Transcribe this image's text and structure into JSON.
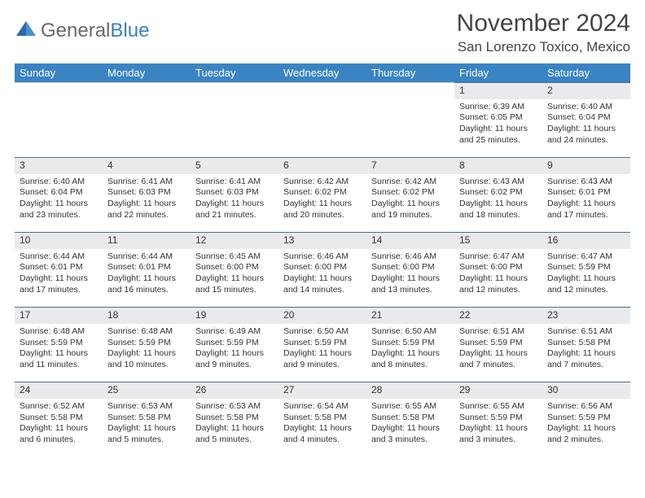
{
  "logo": {
    "word1": "General",
    "word2": "Blue"
  },
  "title": "November 2024",
  "location": "San Lorenzo Toxico, Mexico",
  "colors": {
    "header_bg": "#3a84c4",
    "header_fg": "#ffffff",
    "daynum_bg": "#e9eaec",
    "rule": "#4e6b8b",
    "text": "#333333",
    "logo_gray": "#6a6a6a",
    "logo_blue": "#3a7fbf"
  },
  "weekdays": [
    "Sunday",
    "Monday",
    "Tuesday",
    "Wednesday",
    "Thursday",
    "Friday",
    "Saturday"
  ],
  "weeks": [
    [
      null,
      null,
      null,
      null,
      null,
      {
        "n": "1",
        "sr": "Sunrise: 6:39 AM",
        "ss": "Sunset: 6:05 PM",
        "dl": "Daylight: 11 hours and 25 minutes."
      },
      {
        "n": "2",
        "sr": "Sunrise: 6:40 AM",
        "ss": "Sunset: 6:04 PM",
        "dl": "Daylight: 11 hours and 24 minutes."
      }
    ],
    [
      {
        "n": "3",
        "sr": "Sunrise: 6:40 AM",
        "ss": "Sunset: 6:04 PM",
        "dl": "Daylight: 11 hours and 23 minutes."
      },
      {
        "n": "4",
        "sr": "Sunrise: 6:41 AM",
        "ss": "Sunset: 6:03 PM",
        "dl": "Daylight: 11 hours and 22 minutes."
      },
      {
        "n": "5",
        "sr": "Sunrise: 6:41 AM",
        "ss": "Sunset: 6:03 PM",
        "dl": "Daylight: 11 hours and 21 minutes."
      },
      {
        "n": "6",
        "sr": "Sunrise: 6:42 AM",
        "ss": "Sunset: 6:02 PM",
        "dl": "Daylight: 11 hours and 20 minutes."
      },
      {
        "n": "7",
        "sr": "Sunrise: 6:42 AM",
        "ss": "Sunset: 6:02 PM",
        "dl": "Daylight: 11 hours and 19 minutes."
      },
      {
        "n": "8",
        "sr": "Sunrise: 6:43 AM",
        "ss": "Sunset: 6:02 PM",
        "dl": "Daylight: 11 hours and 18 minutes."
      },
      {
        "n": "9",
        "sr": "Sunrise: 6:43 AM",
        "ss": "Sunset: 6:01 PM",
        "dl": "Daylight: 11 hours and 17 minutes."
      }
    ],
    [
      {
        "n": "10",
        "sr": "Sunrise: 6:44 AM",
        "ss": "Sunset: 6:01 PM",
        "dl": "Daylight: 11 hours and 17 minutes."
      },
      {
        "n": "11",
        "sr": "Sunrise: 6:44 AM",
        "ss": "Sunset: 6:01 PM",
        "dl": "Daylight: 11 hours and 16 minutes."
      },
      {
        "n": "12",
        "sr": "Sunrise: 6:45 AM",
        "ss": "Sunset: 6:00 PM",
        "dl": "Daylight: 11 hours and 15 minutes."
      },
      {
        "n": "13",
        "sr": "Sunrise: 6:46 AM",
        "ss": "Sunset: 6:00 PM",
        "dl": "Daylight: 11 hours and 14 minutes."
      },
      {
        "n": "14",
        "sr": "Sunrise: 6:46 AM",
        "ss": "Sunset: 6:00 PM",
        "dl": "Daylight: 11 hours and 13 minutes."
      },
      {
        "n": "15",
        "sr": "Sunrise: 6:47 AM",
        "ss": "Sunset: 6:00 PM",
        "dl": "Daylight: 11 hours and 12 minutes."
      },
      {
        "n": "16",
        "sr": "Sunrise: 6:47 AM",
        "ss": "Sunset: 5:59 PM",
        "dl": "Daylight: 11 hours and 12 minutes."
      }
    ],
    [
      {
        "n": "17",
        "sr": "Sunrise: 6:48 AM",
        "ss": "Sunset: 5:59 PM",
        "dl": "Daylight: 11 hours and 11 minutes."
      },
      {
        "n": "18",
        "sr": "Sunrise: 6:48 AM",
        "ss": "Sunset: 5:59 PM",
        "dl": "Daylight: 11 hours and 10 minutes."
      },
      {
        "n": "19",
        "sr": "Sunrise: 6:49 AM",
        "ss": "Sunset: 5:59 PM",
        "dl": "Daylight: 11 hours and 9 minutes."
      },
      {
        "n": "20",
        "sr": "Sunrise: 6:50 AM",
        "ss": "Sunset: 5:59 PM",
        "dl": "Daylight: 11 hours and 9 minutes."
      },
      {
        "n": "21",
        "sr": "Sunrise: 6:50 AM",
        "ss": "Sunset: 5:59 PM",
        "dl": "Daylight: 11 hours and 8 minutes."
      },
      {
        "n": "22",
        "sr": "Sunrise: 6:51 AM",
        "ss": "Sunset: 5:59 PM",
        "dl": "Daylight: 11 hours and 7 minutes."
      },
      {
        "n": "23",
        "sr": "Sunrise: 6:51 AM",
        "ss": "Sunset: 5:58 PM",
        "dl": "Daylight: 11 hours and 7 minutes."
      }
    ],
    [
      {
        "n": "24",
        "sr": "Sunrise: 6:52 AM",
        "ss": "Sunset: 5:58 PM",
        "dl": "Daylight: 11 hours and 6 minutes."
      },
      {
        "n": "25",
        "sr": "Sunrise: 6:53 AM",
        "ss": "Sunset: 5:58 PM",
        "dl": "Daylight: 11 hours and 5 minutes."
      },
      {
        "n": "26",
        "sr": "Sunrise: 6:53 AM",
        "ss": "Sunset: 5:58 PM",
        "dl": "Daylight: 11 hours and 5 minutes."
      },
      {
        "n": "27",
        "sr": "Sunrise: 6:54 AM",
        "ss": "Sunset: 5:58 PM",
        "dl": "Daylight: 11 hours and 4 minutes."
      },
      {
        "n": "28",
        "sr": "Sunrise: 6:55 AM",
        "ss": "Sunset: 5:58 PM",
        "dl": "Daylight: 11 hours and 3 minutes."
      },
      {
        "n": "29",
        "sr": "Sunrise: 6:55 AM",
        "ss": "Sunset: 5:59 PM",
        "dl": "Daylight: 11 hours and 3 minutes."
      },
      {
        "n": "30",
        "sr": "Sunrise: 6:56 AM",
        "ss": "Sunset: 5:59 PM",
        "dl": "Daylight: 11 hours and 2 minutes."
      }
    ]
  ]
}
